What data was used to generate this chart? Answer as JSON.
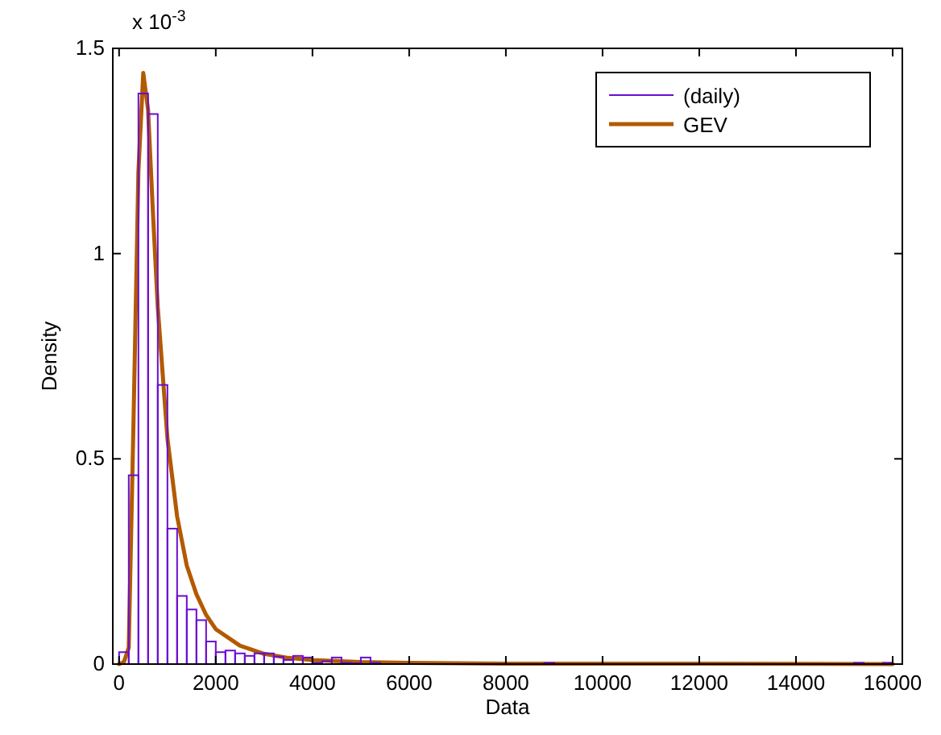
{
  "chart_data": {
    "type": "histogram",
    "xlabel": "Data",
    "ylabel": "Density",
    "annotations": [
      "x 10$^{-3}$"
    ],
    "xlim": [
      -130,
      16200
    ],
    "ylim": [
      0,
      1.5
    ],
    "xticks": [
      0,
      2000,
      4000,
      6000,
      8000,
      10000,
      12000,
      14000,
      16000
    ],
    "yticks": [
      0,
      0.5,
      1,
      1.5
    ],
    "legend": "top right",
    "grid": false,
    "bins": [
      0,
      200,
      400,
      600,
      800,
      1000,
      1200,
      1400,
      1600,
      1800,
      2000,
      2200,
      2400,
      2600,
      2800,
      3000,
      3200,
      3400,
      3600,
      3800,
      4000,
      4200,
      4400,
      4600,
      4800,
      5000,
      5200,
      5400,
      5600,
      5800,
      6000,
      6200,
      6400,
      6600,
      6800,
      7000,
      7200,
      7400,
      7600,
      7800,
      8000,
      8200,
      8400,
      8600,
      8800,
      9000,
      9200,
      9400,
      9600,
      9800,
      10000,
      10200,
      10400,
      10600,
      10800,
      11000,
      11200,
      11400,
      11600,
      11800,
      12000,
      12200,
      12400,
      12600,
      12800,
      13000,
      13200,
      13400,
      13600,
      13800,
      14000,
      14200,
      14400,
      14600,
      14800,
      15000,
      15200,
      15400,
      15600,
      15800,
      16000
    ],
    "series": [
      {
        "name": "(daily)",
        "color": "#6a0dd0",
        "values": [
          0.029,
          0.46,
          1.39,
          1.34,
          0.68,
          0.33,
          0.166,
          0.133,
          0.107,
          0.055,
          0.029,
          0.033,
          0.026,
          0.02,
          0.026,
          0.026,
          0.018,
          0.01,
          0.02,
          0.016,
          0.003,
          0.007,
          0.016,
          0.003,
          0.002,
          0.016,
          0.003,
          0,
          0,
          0,
          0,
          0,
          0,
          0,
          0,
          0,
          0,
          0,
          0,
          0,
          0,
          0,
          0,
          0,
          0.003,
          0,
          0,
          0,
          0,
          0,
          0,
          0,
          0,
          0,
          0,
          0,
          0,
          0,
          0,
          0,
          0,
          0,
          0,
          0,
          0,
          0,
          0,
          0,
          0,
          0,
          0,
          0,
          0,
          0,
          0,
          0,
          0.003,
          0,
          0,
          0.003
        ]
      },
      {
        "type": "line",
        "name": "GEV",
        "color": "#b35a00",
        "x": [
          0,
          100,
          200,
          300,
          400,
          500,
          600,
          700,
          800,
          1000,
          1200,
          1400,
          1600,
          1800,
          2000,
          2500,
          3000,
          3500,
          4000,
          5000,
          6000,
          8000,
          12000,
          16000
        ],
        "values": [
          0,
          0.005,
          0.04,
          0.6,
          1.2,
          1.44,
          1.35,
          1.1,
          0.87,
          0.55,
          0.36,
          0.24,
          0.17,
          0.12,
          0.085,
          0.045,
          0.025,
          0.015,
          0.01,
          0.005,
          0.003,
          0.001,
          0.001,
          0
        ]
      }
    ]
  }
}
